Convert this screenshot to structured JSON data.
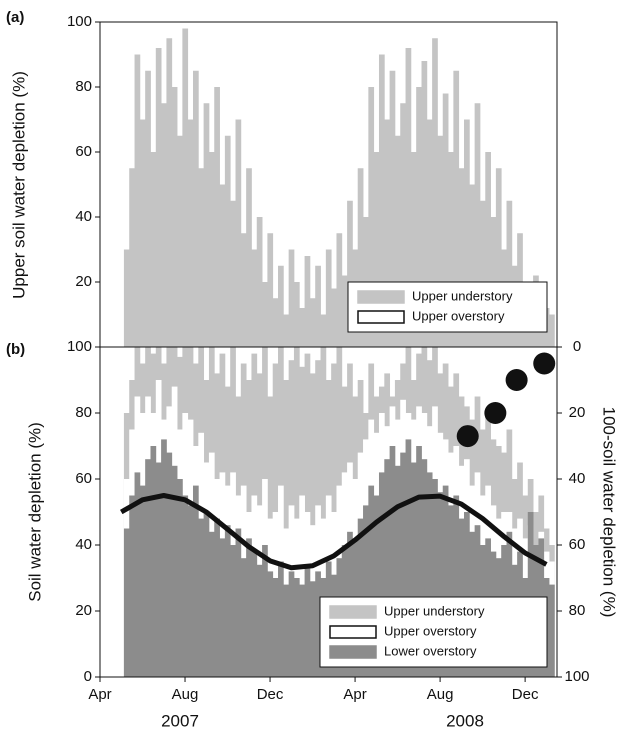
{
  "chart_data": [
    {
      "type": "bar",
      "panel_label": "(a)",
      "ylabel": "Upper soil water depletion (%)",
      "x": [
        4.25,
        4.5,
        4.75,
        5,
        5.25,
        5.5,
        5.75,
        6,
        6.25,
        6.5,
        6.75,
        7,
        7.25,
        7.5,
        7.75,
        8,
        8.25,
        8.5,
        8.75,
        9,
        9.25,
        9.5,
        9.75,
        10,
        10.25,
        10.5,
        10.75,
        11,
        11.25,
        11.5,
        11.75,
        12,
        12.25,
        12.5,
        12.75,
        13,
        13.25,
        13.5,
        13.75,
        14,
        14.25,
        14.5,
        14.75,
        15,
        15.25,
        15.5,
        15.75,
        16,
        16.25,
        16.5,
        16.75,
        17,
        17.25,
        17.5,
        17.75,
        18,
        18.25,
        18.5,
        18.75,
        19,
        19.25,
        19.5,
        19.75,
        20,
        20.25,
        20.5,
        20.75,
        21,
        21.25,
        21.5,
        21.75,
        22,
        22.25,
        22.5,
        22.75,
        23,
        23.25,
        23.5,
        23.75,
        24,
        24.25
      ],
      "xlim": [
        3,
        24.5
      ],
      "ylim": [
        0,
        100
      ],
      "yticks": [
        20,
        40,
        60,
        80,
        100
      ],
      "series": [
        {
          "name": "Upper understory",
          "color": "#c4c4c4",
          "values": [
            30,
            55,
            90,
            70,
            85,
            60,
            92,
            75,
            95,
            80,
            65,
            98,
            70,
            85,
            55,
            75,
            60,
            80,
            50,
            65,
            45,
            70,
            35,
            55,
            30,
            40,
            20,
            35,
            15,
            25,
            10,
            30,
            20,
            12,
            28,
            15,
            25,
            10,
            30,
            18,
            35,
            22,
            45,
            30,
            55,
            40,
            80,
            60,
            90,
            70,
            85,
            65,
            75,
            92,
            60,
            80,
            88,
            70,
            95,
            65,
            78,
            60,
            85,
            55,
            70,
            50,
            75,
            45,
            60,
            40,
            55,
            30,
            45,
            25,
            35,
            20,
            18,
            22,
            15,
            12,
            10
          ]
        },
        {
          "name": "Upper overstory",
          "color": "#ffffff",
          "values": [
            12,
            20,
            35,
            28,
            33,
            24,
            36,
            30,
            38,
            32,
            26,
            39,
            28,
            34,
            22,
            30,
            24,
            32,
            20,
            26,
            18,
            28,
            14,
            22,
            12,
            16,
            8,
            14,
            6,
            10,
            4,
            12,
            8,
            5,
            11,
            6,
            10,
            4,
            12,
            7,
            14,
            9,
            18,
            12,
            22,
            16,
            32,
            24,
            36,
            28,
            34,
            26,
            30,
            37,
            24,
            32,
            35,
            28,
            38,
            26,
            31,
            24,
            34,
            22,
            28,
            20,
            30,
            18,
            24,
            16,
            22,
            12,
            18,
            10,
            14,
            8,
            7,
            9,
            6,
            5,
            4
          ]
        }
      ]
    },
    {
      "type": "bar",
      "panel_label": "(b)",
      "ylabel": "Soil water depletion (%)",
      "y2label": "100-soil water depletion (%)",
      "x": [
        4.25,
        4.5,
        4.75,
        5,
        5.25,
        5.5,
        5.75,
        6,
        6.25,
        6.5,
        6.75,
        7,
        7.25,
        7.5,
        7.75,
        8,
        8.25,
        8.5,
        8.75,
        9,
        9.25,
        9.5,
        9.75,
        10,
        10.25,
        10.5,
        10.75,
        11,
        11.25,
        11.5,
        11.75,
        12,
        12.25,
        12.5,
        12.75,
        13,
        13.25,
        13.5,
        13.75,
        14,
        14.25,
        14.5,
        14.75,
        15,
        15.25,
        15.5,
        15.75,
        16,
        16.25,
        16.5,
        16.75,
        17,
        17.25,
        17.5,
        17.75,
        18,
        18.25,
        18.5,
        18.75,
        19,
        19.25,
        19.5,
        19.75,
        20,
        20.25,
        20.5,
        20.75,
        21,
        21.25,
        21.5,
        21.75,
        22,
        22.25,
        22.5,
        22.75,
        23,
        23.25,
        23.5,
        23.75,
        24,
        24.25
      ],
      "xlim": [
        3,
        24.5
      ],
      "xticks": [
        {
          "value": 3,
          "label": "Apr"
        },
        {
          "value": 7,
          "label": "Aug"
        },
        {
          "value": 11,
          "label": "Dec"
        },
        {
          "value": 15,
          "label": "Apr"
        },
        {
          "value": 19,
          "label": "Aug"
        },
        {
          "value": 23,
          "label": "Dec"
        }
      ],
      "annotations": [
        "2007",
        "2008"
      ],
      "ylim": [
        0,
        100
      ],
      "yticks": [
        0,
        20,
        40,
        60,
        80,
        100
      ],
      "y2lim": [
        100,
        0
      ],
      "y2ticks": [
        0,
        20,
        40,
        60,
        80,
        100
      ],
      "series": [
        {
          "name": "Upper understory",
          "color": "#c4c4c4",
          "values": [
            80,
            90,
            100,
            95,
            100,
            98,
            100,
            95,
            100,
            100,
            97,
            100,
            100,
            95,
            100,
            90,
            100,
            92,
            98,
            88,
            100,
            85,
            95,
            90,
            98,
            92,
            100,
            85,
            95,
            100,
            90,
            96,
            100,
            94,
            98,
            92,
            96,
            100,
            90,
            95,
            100,
            88,
            95,
            85,
            90,
            80,
            95,
            85,
            88,
            92,
            85,
            90,
            95,
            100,
            90,
            98,
            100,
            96,
            100,
            92,
            95,
            88,
            92,
            85,
            82,
            78,
            85,
            75,
            80,
            72,
            70,
            68,
            75,
            60,
            65,
            55,
            60,
            50,
            55,
            45,
            40
          ]
        },
        {
          "name": "Upper overstory",
          "color": "#ffffff",
          "values": [
            60,
            75,
            85,
            80,
            85,
            80,
            90,
            78,
            82,
            88,
            75,
            80,
            78,
            70,
            74,
            65,
            68,
            60,
            62,
            58,
            62,
            55,
            58,
            50,
            55,
            52,
            60,
            48,
            50,
            58,
            45,
            52,
            48,
            55,
            50,
            46,
            52,
            48,
            55,
            50,
            58,
            62,
            65,
            60,
            68,
            72,
            78,
            74,
            80,
            76,
            82,
            78,
            84,
            80,
            78,
            82,
            80,
            76,
            82,
            74,
            72,
            68,
            70,
            64,
            66,
            58,
            62,
            55,
            58,
            52,
            48,
            50,
            50,
            45,
            48,
            42,
            46,
            40,
            44,
            38,
            35
          ]
        },
        {
          "name": "Lower overstory",
          "color": "#8c8c8c",
          "values": [
            45,
            55,
            62,
            58,
            66,
            70,
            65,
            72,
            68,
            64,
            60,
            55,
            52,
            58,
            48,
            50,
            44,
            48,
            42,
            46,
            40,
            45,
            36,
            42,
            38,
            34,
            40,
            32,
            30,
            35,
            28,
            32,
            30,
            28,
            33,
            29,
            32,
            30,
            35,
            31,
            36,
            40,
            44,
            42,
            48,
            52,
            58,
            55,
            62,
            66,
            70,
            64,
            68,
            72,
            65,
            70,
            66,
            62,
            60,
            56,
            58,
            52,
            55,
            48,
            50,
            44,
            46,
            40,
            42,
            38,
            36,
            40,
            44,
            34,
            38,
            30,
            50,
            40,
            42,
            30,
            28
          ]
        }
      ],
      "curve": {
        "color": "#111111",
        "x": [
          4,
          5,
          6,
          7,
          8,
          9,
          10,
          11,
          12,
          13,
          14,
          15,
          16,
          17,
          18,
          19,
          20,
          21,
          22,
          23,
          24
        ],
        "values": [
          50.0,
          53.7,
          55.0,
          53.7,
          50.0,
          44.8,
          39.5,
          35.2,
          33.1,
          33.7,
          36.7,
          41.5,
          46.9,
          51.6,
          54.5,
          54.8,
          52.4,
          48.0,
          42.6,
          37.6,
          34.1
        ]
      },
      "points": {
        "axis": "y2",
        "color": "#111111",
        "x": [
          20.3,
          21.6,
          22.6,
          23.9
        ],
        "values": [
          27,
          20,
          10,
          5
        ]
      }
    }
  ]
}
